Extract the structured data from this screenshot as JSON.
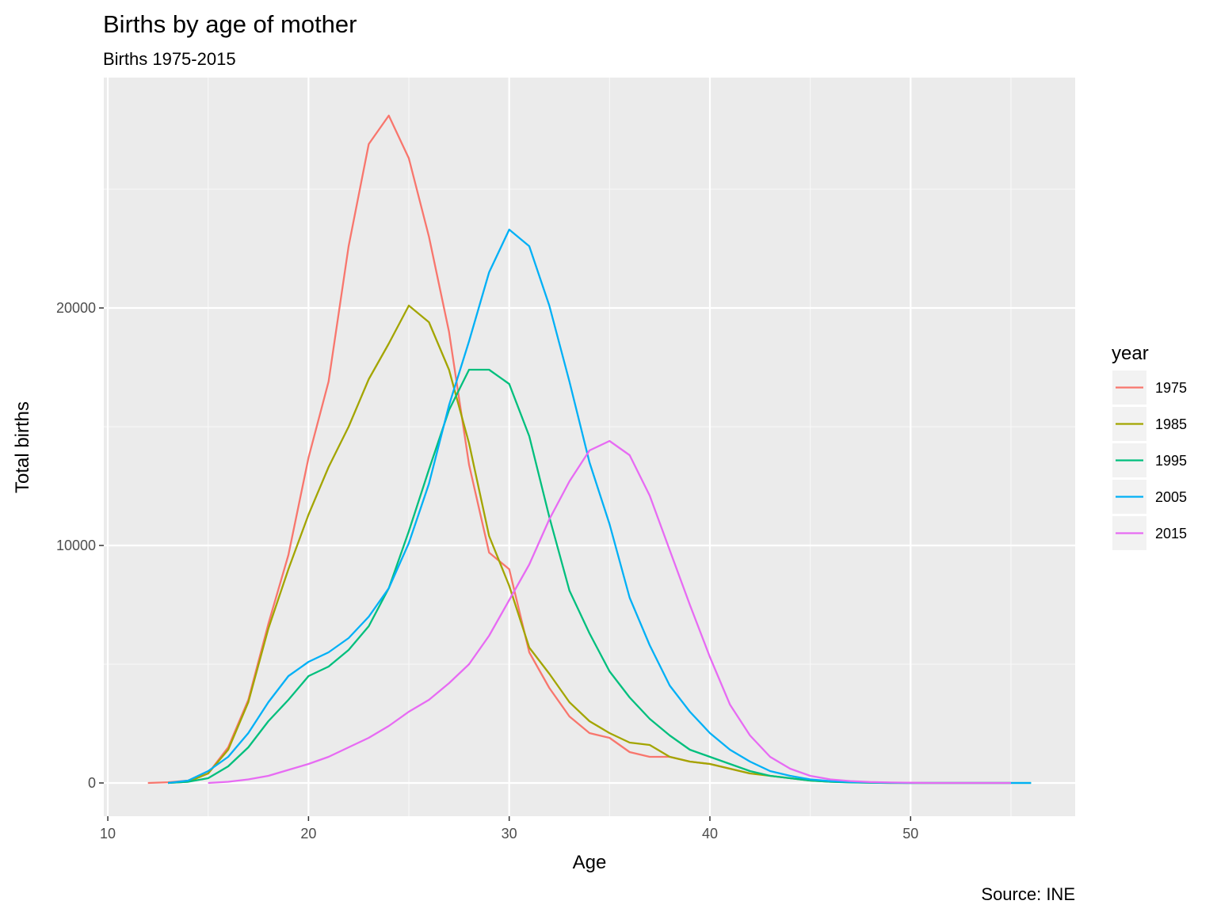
{
  "chart_data": {
    "type": "line",
    "title": "Births by age of mother",
    "subtitle": "Births 1975-2015",
    "xlabel": "Age",
    "ylabel": "Total births",
    "caption": "Source: INE",
    "xlim": [
      9.8,
      58.2
    ],
    "ylim": [
      -1400,
      29700
    ],
    "x_ticks": [
      10,
      20,
      30,
      40,
      50
    ],
    "y_ticks": [
      0,
      10000,
      20000
    ],
    "grid": true,
    "legend": {
      "title": "year",
      "placement": "right"
    },
    "series": [
      {
        "name": "1975",
        "color": "#F8766D",
        "x": [
          12,
          13,
          14,
          15,
          16,
          17,
          18,
          19,
          20,
          21,
          22,
          23,
          24,
          25,
          26,
          27,
          28,
          29,
          30,
          31,
          32,
          33,
          34,
          35,
          36,
          37,
          38,
          39,
          40,
          41,
          42
        ],
        "y": [
          0,
          30,
          100,
          400,
          1500,
          3500,
          6700,
          9600,
          13700,
          16900,
          22600,
          26900,
          28100,
          26300,
          23000,
          19000,
          13400,
          9700,
          9000,
          5500,
          4000,
          2800,
          2100,
          1900,
          1300,
          1100,
          1100,
          900,
          800,
          600,
          400
        ]
      },
      {
        "name": "1985",
        "color": "#A3A500",
        "x": [
          13,
          14,
          15,
          16,
          17,
          18,
          19,
          20,
          21,
          22,
          23,
          24,
          25,
          26,
          27,
          28,
          29,
          30,
          31,
          32,
          33,
          34,
          35,
          36,
          37,
          38,
          39,
          40,
          41,
          42,
          43,
          44,
          45,
          46,
          47,
          48,
          49,
          50,
          51,
          52,
          53,
          54,
          55
        ],
        "y": [
          0,
          50,
          400,
          1400,
          3400,
          6500,
          9000,
          11300,
          13300,
          15000,
          17000,
          18500,
          20100,
          19400,
          17400,
          14300,
          10400,
          8300,
          5700,
          4600,
          3400,
          2600,
          2100,
          1700,
          1600,
          1100,
          900,
          800,
          600,
          400,
          300,
          200,
          100,
          50,
          30,
          10,
          0,
          0,
          0,
          0,
          0,
          0,
          0
        ]
      },
      {
        "name": "1995",
        "color": "#00BF7D",
        "x": [
          13,
          14,
          15,
          16,
          17,
          18,
          19,
          20,
          21,
          22,
          23,
          24,
          25,
          26,
          27,
          28,
          29,
          30,
          31,
          32,
          33,
          34,
          35,
          36,
          37,
          38,
          39,
          40,
          41,
          42,
          43,
          44,
          45,
          46,
          47,
          48,
          49,
          50,
          51,
          52,
          53,
          54,
          55,
          56
        ],
        "y": [
          0,
          50,
          200,
          700,
          1500,
          2600,
          3500,
          4500,
          4900,
          5600,
          6600,
          8200,
          10600,
          13200,
          15700,
          17400,
          17400,
          16800,
          14600,
          11200,
          8100,
          6300,
          4700,
          3600,
          2700,
          2000,
          1400,
          1100,
          800,
          500,
          300,
          200,
          100,
          50,
          20,
          10,
          0,
          0,
          0,
          0,
          0,
          0,
          0,
          0
        ]
      },
      {
        "name": "2005",
        "color": "#00B0F6",
        "x": [
          13,
          14,
          15,
          16,
          17,
          18,
          19,
          20,
          21,
          22,
          23,
          24,
          25,
          26,
          27,
          28,
          29,
          30,
          31,
          32,
          33,
          34,
          35,
          36,
          37,
          38,
          39,
          40,
          41,
          42,
          43,
          44,
          45,
          46,
          47,
          48,
          49,
          50,
          51,
          52,
          53,
          54,
          55,
          56
        ],
        "y": [
          0,
          100,
          500,
          1100,
          2100,
          3400,
          4500,
          5100,
          5500,
          6100,
          7000,
          8200,
          10100,
          12600,
          15900,
          18600,
          21500,
          23300,
          22600,
          20100,
          16900,
          13500,
          10900,
          7800,
          5800,
          4100,
          3000,
          2100,
          1400,
          900,
          500,
          300,
          150,
          80,
          40,
          20,
          10,
          0,
          0,
          0,
          0,
          0,
          0,
          0
        ]
      },
      {
        "name": "2015",
        "color": "#E76BF3",
        "x": [
          15,
          16,
          17,
          18,
          19,
          20,
          21,
          22,
          23,
          24,
          25,
          26,
          27,
          28,
          29,
          30,
          31,
          32,
          33,
          34,
          35,
          36,
          37,
          38,
          39,
          40,
          41,
          42,
          43,
          44,
          45,
          46,
          47,
          48,
          49,
          50,
          51,
          52,
          53,
          54,
          55
        ],
        "y": [
          0,
          50,
          150,
          300,
          550,
          800,
          1100,
          1500,
          1900,
          2400,
          3000,
          3500,
          4200,
          5000,
          6200,
          7700,
          9200,
          11100,
          12700,
          14000,
          14400,
          13800,
          12100,
          9800,
          7500,
          5300,
          3300,
          2000,
          1100,
          600,
          300,
          150,
          80,
          40,
          20,
          10,
          0,
          0,
          0,
          0,
          0
        ]
      }
    ]
  }
}
